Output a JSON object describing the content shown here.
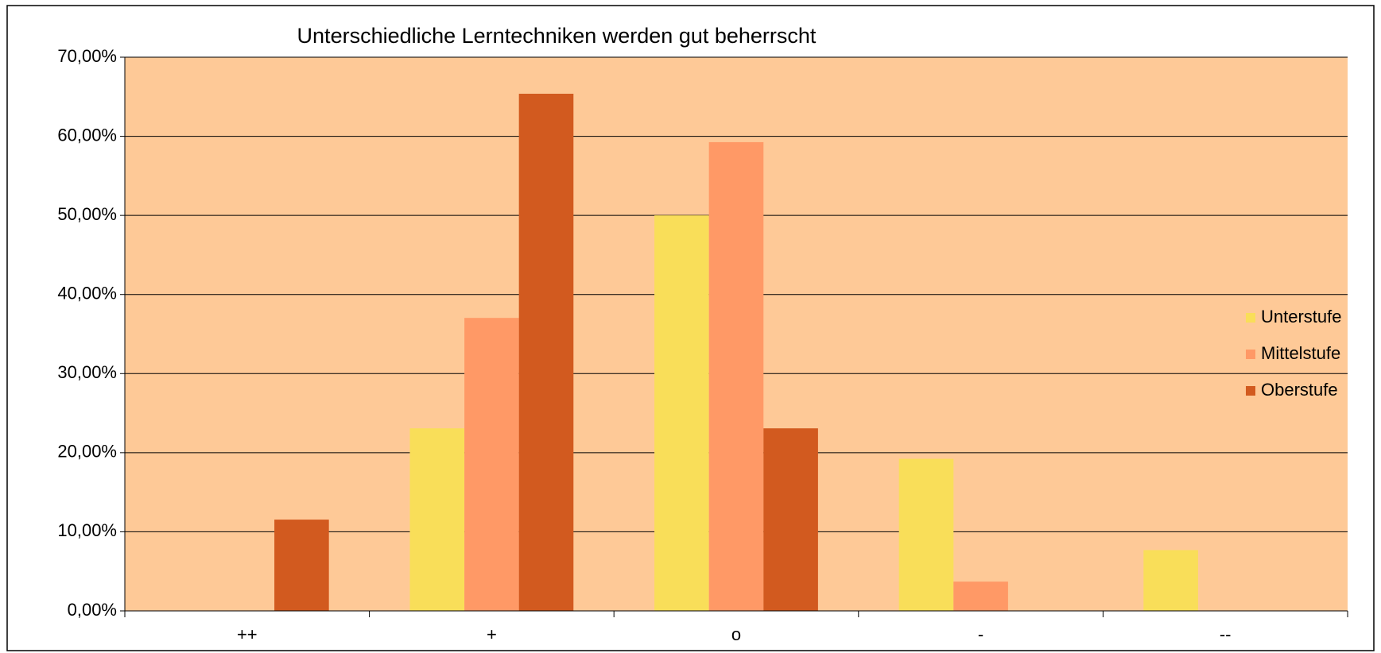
{
  "chart_data": {
    "type": "bar",
    "title": "Unterschiedliche Lerntechniken werden gut beherrscht",
    "categories": [
      "++",
      "+",
      "o",
      "-",
      "--"
    ],
    "series": [
      {
        "name": "Unterstufe",
        "color": "#f9de59",
        "values": [
          0,
          23.08,
          50.0,
          19.23,
          7.69
        ]
      },
      {
        "name": "Mittelstufe",
        "color": "#ff9966",
        "values": [
          0,
          37.04,
          59.26,
          3.7,
          0
        ]
      },
      {
        "name": "Oberstufe",
        "color": "#d25a1f",
        "values": [
          11.54,
          65.38,
          23.08,
          0,
          0
        ]
      }
    ],
    "ylim": [
      0,
      70
    ],
    "yticks": [
      {
        "value": 0,
        "label": "0,00%"
      },
      {
        "value": 10,
        "label": "10,00%"
      },
      {
        "value": 20,
        "label": "20,00%"
      },
      {
        "value": 30,
        "label": "30,00%"
      },
      {
        "value": 40,
        "label": "40,00%"
      },
      {
        "value": 50,
        "label": "50,00%"
      },
      {
        "value": 60,
        "label": "60,00%"
      },
      {
        "value": 70,
        "label": "70,00%"
      }
    ],
    "grid": true,
    "legend": "right",
    "plot_background": "#fec997"
  }
}
